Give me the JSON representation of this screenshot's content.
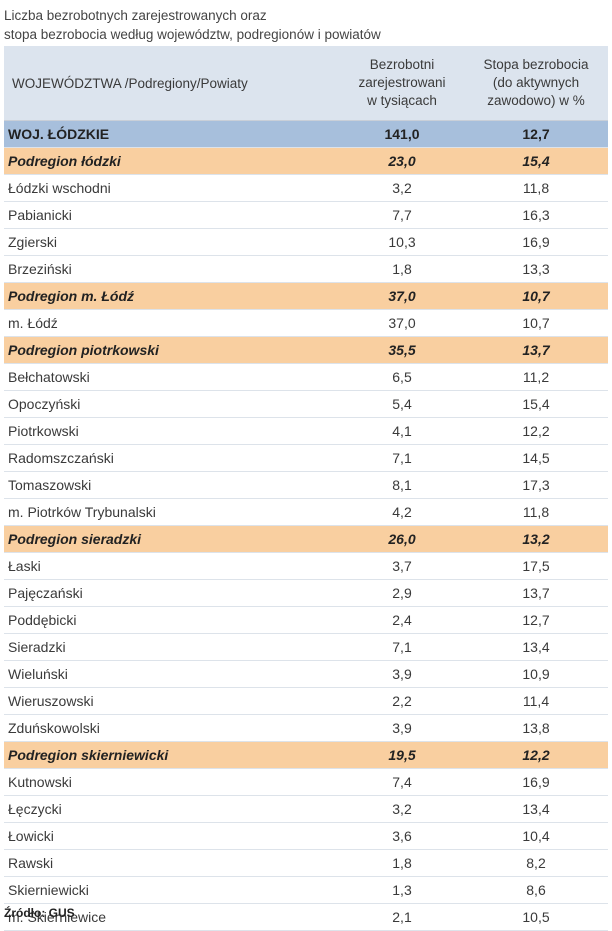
{
  "title": {
    "line1": "Liczba bezrobotnych zarejestrowanych oraz",
    "line2": "stopa bezrobocia według województw, podregionów  i  powiatów"
  },
  "header": {
    "col1": "WOJEWÓDZTWA /Podregiony/Powiaty",
    "col2_l1": "Bezrobotni",
    "col2_l2": "zarejestrowani",
    "col2_l3": "w tysiącach",
    "col3_l1": "Stopa bezrobocia",
    "col3_l2": "(do aktywnych",
    "col3_l3": "zawodowo) w %"
  },
  "rows": [
    {
      "type": "voiv",
      "name": "WOJ. ŁÓDZKIE",
      "unemployed": "141,0",
      "rate": "12,7"
    },
    {
      "type": "region",
      "name": "Podregion łódzki",
      "unemployed": "23,0",
      "rate": "15,4"
    },
    {
      "type": "county",
      "name": "Łódzki wschodni",
      "unemployed": "3,2",
      "rate": "11,8"
    },
    {
      "type": "county",
      "name": "Pabianicki",
      "unemployed": "7,7",
      "rate": "16,3"
    },
    {
      "type": "county",
      "name": "Zgierski",
      "unemployed": "10,3",
      "rate": "16,9"
    },
    {
      "type": "county",
      "name": "Brzeziński",
      "unemployed": "1,8",
      "rate": "13,3"
    },
    {
      "type": "region",
      "name": "Podregion m. Łódź",
      "unemployed": "37,0",
      "rate": "10,7"
    },
    {
      "type": "county",
      "name": "m. Łódź",
      "unemployed": "37,0",
      "rate": "10,7"
    },
    {
      "type": "region",
      "name": "Podregion piotrkowski",
      "unemployed": "35,5",
      "rate": "13,7"
    },
    {
      "type": "county",
      "name": "Bełchatowski",
      "unemployed": "6,5",
      "rate": "11,2"
    },
    {
      "type": "county",
      "name": "Opoczyński",
      "unemployed": "5,4",
      "rate": "15,4"
    },
    {
      "type": "county",
      "name": "Piotrkowski",
      "unemployed": "4,1",
      "rate": "12,2"
    },
    {
      "type": "county",
      "name": "Radomszczański",
      "unemployed": "7,1",
      "rate": "14,5"
    },
    {
      "type": "county",
      "name": "Tomaszowski",
      "unemployed": "8,1",
      "rate": "17,3"
    },
    {
      "type": "county",
      "name": "m. Piotrków Trybunalski",
      "unemployed": "4,2",
      "rate": "11,8"
    },
    {
      "type": "region",
      "name": "Podregion sieradzki",
      "unemployed": "26,0",
      "rate": "13,2"
    },
    {
      "type": "county",
      "name": "Łaski",
      "unemployed": "3,7",
      "rate": "17,5"
    },
    {
      "type": "county",
      "name": "Pajęczański",
      "unemployed": "2,9",
      "rate": "13,7"
    },
    {
      "type": "county",
      "name": "Poddębicki",
      "unemployed": "2,4",
      "rate": "12,7"
    },
    {
      "type": "county",
      "name": "Sieradzki",
      "unemployed": "7,1",
      "rate": "13,4"
    },
    {
      "type": "county",
      "name": "Wieluński",
      "unemployed": "3,9",
      "rate": "10,9"
    },
    {
      "type": "county",
      "name": "Wieruszowski",
      "unemployed": "2,2",
      "rate": "11,4"
    },
    {
      "type": "county",
      "name": "Zduńskowolski",
      "unemployed": "3,9",
      "rate": "13,8"
    },
    {
      "type": "region",
      "name": "Podregion skierniewicki",
      "unemployed": "19,5",
      "rate": "12,2"
    },
    {
      "type": "county",
      "name": "Kutnowski",
      "unemployed": "7,4",
      "rate": "16,9"
    },
    {
      "type": "county",
      "name": "Łęczycki",
      "unemployed": "3,2",
      "rate": "13,4"
    },
    {
      "type": "county",
      "name": "Łowicki",
      "unemployed": "3,6",
      "rate": "10,4"
    },
    {
      "type": "county",
      "name": "Rawski",
      "unemployed": "1,8",
      "rate": "8,2"
    },
    {
      "type": "county",
      "name": "Skierniewicki",
      "unemployed": "1,3",
      "rate": "8,6"
    },
    {
      "type": "county",
      "name": "m. Skierniewice",
      "unemployed": "2,1",
      "rate": "10,5"
    }
  ],
  "source": "Źródło: GUS"
}
